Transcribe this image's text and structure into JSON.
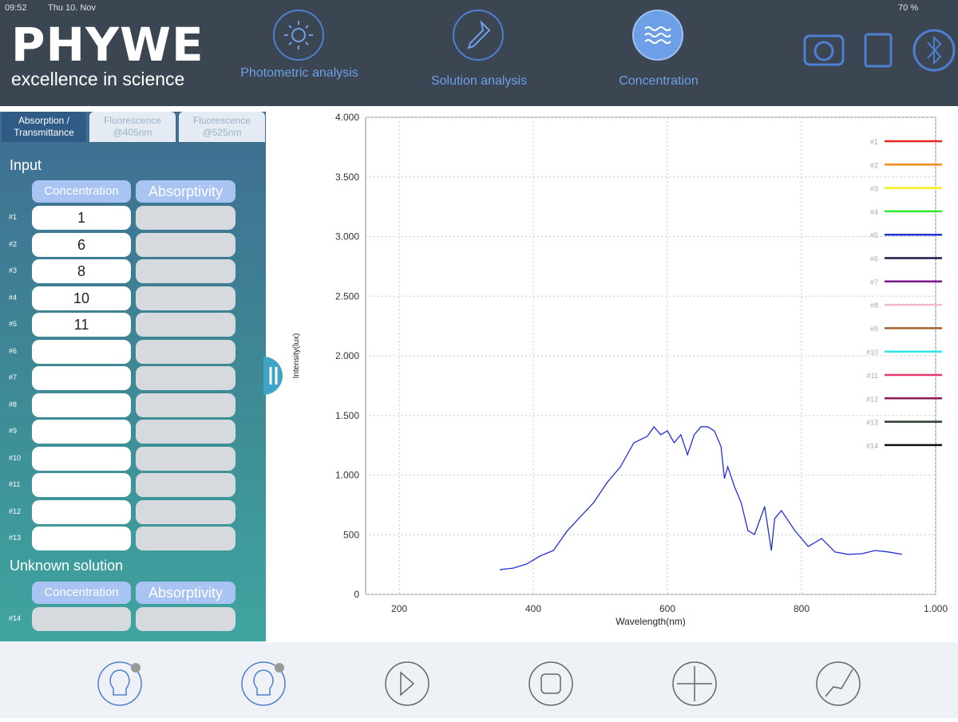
{
  "status": {
    "time": "09:52",
    "date": "Thu 10. Nov",
    "battery": "70 %"
  },
  "header": {
    "logo": "PHYWE",
    "tagline": "excellence in science",
    "nav": [
      "Photometric analysis",
      "Solution analysis",
      "Concentration"
    ]
  },
  "tabs": [
    "Absorption / Transmittance",
    "Fluorescence @405nm",
    "Fluorescence @525nm"
  ],
  "input": {
    "title": "Input",
    "headers": [
      "Concentration",
      "Absorptivity"
    ],
    "rows": [
      {
        "label": "#1",
        "concentration": 1
      },
      {
        "label": "#2",
        "concentration": 6
      },
      {
        "label": "#3",
        "concentration": 8
      },
      {
        "label": "#4",
        "concentration": 10
      },
      {
        "label": "#5",
        "concentration": 11
      },
      {
        "label": "#6"
      },
      {
        "label": "#7"
      },
      {
        "label": "#8"
      },
      {
        "label": "#9"
      },
      {
        "label": "#10"
      },
      {
        "label": "#11"
      },
      {
        "label": "#12"
      },
      {
        "label": "#13"
      }
    ]
  },
  "unknown": {
    "title": "Unknown solution",
    "headers": [
      "Concentration",
      "Absorptivity"
    ],
    "rows": [
      {
        "label": "#14"
      }
    ]
  },
  "chart_data": {
    "type": "line",
    "x_label": "Wavelength(nm)",
    "y_label": "Intensity(lux)",
    "xlim": [
      150,
      1000
    ],
    "xticks": [
      200,
      400,
      600,
      800,
      {
        "value": 1000,
        "label": "1.000"
      }
    ],
    "ylim": [
      0,
      4000
    ],
    "yticks": [
      0,
      500,
      {
        "value": 1000,
        "label": "1.000"
      },
      {
        "value": 1500,
        "label": "1.500"
      },
      {
        "value": 2000,
        "label": "2.000"
      },
      {
        "value": 2500,
        "label": "2.500"
      },
      {
        "value": 3000,
        "label": "3.000"
      },
      {
        "value": 3500,
        "label": "3.500"
      },
      {
        "value": 4000,
        "label": "4.000"
      }
    ],
    "grid": true,
    "legend": "right",
    "x": [
      350,
      370,
      390,
      410,
      430,
      450,
      470,
      490,
      510,
      530,
      550,
      570,
      580,
      590,
      600,
      610,
      620,
      630,
      640,
      650,
      660,
      670,
      680,
      685,
      690,
      700,
      710,
      720,
      730,
      745,
      755,
      760,
      770,
      790,
      810,
      830,
      850,
      870,
      890,
      910,
      930,
      950
    ],
    "series": [
      {
        "name": "#1",
        "color": "#e8261e"
      },
      {
        "name": "#2",
        "color": "#f08a1c"
      },
      {
        "name": "#3",
        "color": "#f4ef1a"
      },
      {
        "name": "#4",
        "color": "#2ee82e"
      },
      {
        "name": "#5",
        "color": "#2330d8",
        "values": [
          207,
          220,
          254,
          321,
          368,
          528,
          649,
          769,
          937,
          1070,
          1271,
          1325,
          1405,
          1338,
          1371,
          1271,
          1338,
          1171,
          1338,
          1405,
          1405,
          1371,
          1238,
          970,
          1070,
          903,
          769,
          535,
          502,
          736,
          368,
          636,
          702,
          535,
          401,
          468,
          355,
          335,
          341,
          368,
          355,
          335
        ]
      },
      {
        "name": "#6",
        "color": "#1a1a4a"
      },
      {
        "name": "#7",
        "color": "#7a1a8a"
      },
      {
        "name": "#8",
        "color": "#f4b8c8"
      },
      {
        "name": "#9",
        "color": "#a0602a"
      },
      {
        "name": "#10",
        "color": "#2ee8e8"
      },
      {
        "name": "#11",
        "color": "#e83a6a"
      },
      {
        "name": "#12",
        "color": "#8a1a5a"
      },
      {
        "name": "#13",
        "color": "#2a3a2a"
      },
      {
        "name": "#14",
        "color": "#111111"
      }
    ]
  }
}
